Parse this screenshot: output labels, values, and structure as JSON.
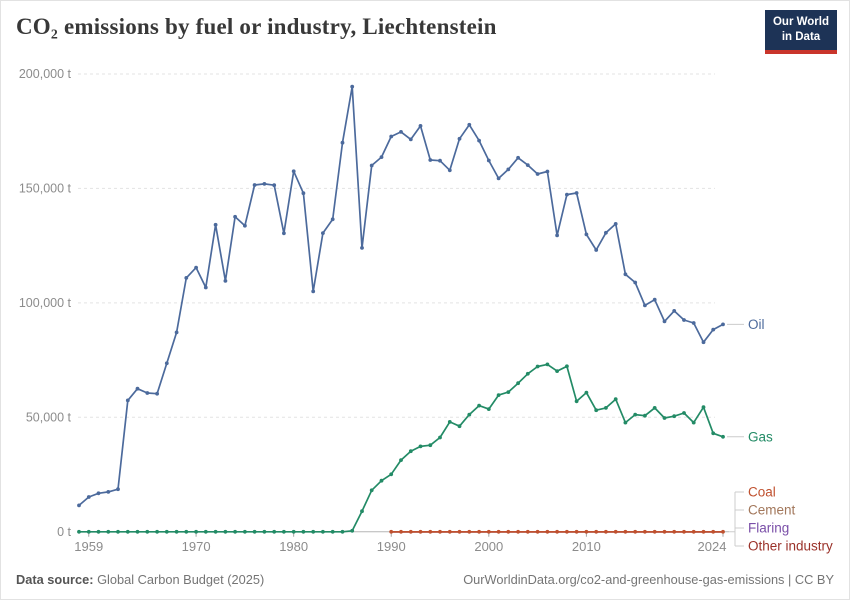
{
  "header": {
    "title": "CO₂ emissions by fuel or industry, Liechtenstein",
    "logo": {
      "line1": "Our World",
      "line2": "in Data"
    }
  },
  "chart": {
    "y_axis": {
      "unit": "t",
      "ticks": [
        {
          "value": 0,
          "label": "0 t"
        },
        {
          "value": 50000,
          "label": "50,000 t"
        },
        {
          "value": 100000,
          "label": "100,000 t"
        },
        {
          "value": 150000,
          "label": "150,000 t"
        },
        {
          "value": 200000,
          "label": "200,000 t"
        }
      ]
    },
    "x_axis": {
      "ticks": [
        {
          "year": 1959,
          "label": "1959"
        },
        {
          "year": 1970,
          "label": "1970"
        },
        {
          "year": 1980,
          "label": "1980"
        },
        {
          "year": 1990,
          "label": "1990"
        },
        {
          "year": 2000,
          "label": "2000"
        },
        {
          "year": 2010,
          "label": "2010"
        },
        {
          "year": 2024,
          "label": "2024"
        }
      ]
    }
  },
  "chart_data": {
    "type": "line",
    "title": "CO₂ emissions by fuel or industry, Liechtenstein",
    "xlabel": "",
    "ylabel": "",
    "x_range": [
      1958,
      2024
    ],
    "ylim": [
      0,
      200000
    ],
    "grid": true,
    "legend_position": "right",
    "series": [
      {
        "name": "Oil",
        "color": "#4C6A9C",
        "start_year": 1958,
        "values": [
          11500,
          15200,
          16800,
          17400,
          18600,
          57400,
          62500,
          60600,
          60300,
          73600,
          87100,
          110900,
          115400,
          106700,
          134100,
          109600,
          137600,
          133700,
          151500,
          152000,
          151400,
          130400,
          157500,
          147900,
          105000,
          130500,
          136500,
          170000,
          194500,
          124000,
          160000,
          163700,
          172700,
          174700,
          171400,
          177300,
          162400,
          162100,
          157900,
          171700,
          177800,
          170900,
          162200,
          154400,
          158300,
          163400,
          160200,
          156300,
          157400,
          129500,
          147300,
          148000,
          129900,
          123100,
          130600,
          134500,
          112500,
          108900,
          98900,
          101400,
          91900,
          96500,
          92500,
          91200,
          82800,
          88300,
          90600
        ]
      },
      {
        "name": "Gas",
        "color": "#238B66",
        "start_year": 1958,
        "values": [
          0,
          0,
          0,
          0,
          0,
          0,
          0,
          0,
          0,
          0,
          0,
          0,
          0,
          0,
          0,
          0,
          0,
          0,
          0,
          0,
          0,
          0,
          0,
          0,
          0,
          0,
          0,
          0,
          400,
          9000,
          18100,
          22300,
          25100,
          31300,
          35200,
          37300,
          37800,
          41200,
          48000,
          46100,
          51200,
          55100,
          53600,
          59700,
          61000,
          64900,
          69000,
          72200,
          73100,
          70200,
          72300,
          57000,
          60800,
          53100,
          54100,
          57900,
          47700,
          51200,
          50700,
          54100,
          49700,
          50500,
          51900,
          47700,
          54400,
          43000,
          41500
        ]
      },
      {
        "name": "Coal",
        "color": "#C0512F",
        "start_year": 1990,
        "values": [
          0,
          0,
          0,
          0,
          0,
          0,
          0,
          0,
          0,
          0,
          0,
          0,
          0,
          0,
          0,
          0,
          0,
          0,
          0,
          0,
          0,
          0,
          0,
          0,
          0,
          0,
          0,
          0,
          0,
          0,
          0,
          0,
          0,
          0,
          0
        ]
      },
      {
        "name": "Cement",
        "color": "#A2775B",
        "start_year": 1990,
        "values": [
          0,
          0,
          0,
          0,
          0,
          0,
          0,
          0,
          0,
          0,
          0,
          0,
          0,
          0,
          0,
          0,
          0,
          0,
          0,
          0,
          0,
          0,
          0,
          0,
          0,
          0,
          0,
          0,
          0,
          0,
          0,
          0,
          0,
          0,
          0
        ]
      },
      {
        "name": "Flaring",
        "color": "#7A4FA8",
        "start_year": 1990,
        "values": [
          0,
          0,
          0,
          0,
          0,
          0,
          0,
          0,
          0,
          0,
          0,
          0,
          0,
          0,
          0,
          0,
          0,
          0,
          0,
          0,
          0,
          0,
          0,
          0,
          0,
          0,
          0,
          0,
          0,
          0,
          0,
          0,
          0,
          0,
          0
        ]
      },
      {
        "name": "Other industry",
        "color": "#9A3129",
        "start_year": 1990,
        "values": [
          0,
          0,
          0,
          0,
          0,
          0,
          0,
          0,
          0,
          0,
          0,
          0,
          0,
          0,
          0,
          0,
          0,
          0,
          0,
          0,
          0,
          0,
          0,
          0,
          0,
          0,
          0,
          0,
          0,
          0,
          0,
          0,
          0,
          0,
          0
        ]
      }
    ]
  },
  "footer": {
    "source_label": "Data source:",
    "source": " Global Carbon Budget (2025)",
    "link": "OurWorldinData.org/co2-and-greenhouse-gas-emissions | CC BY"
  }
}
